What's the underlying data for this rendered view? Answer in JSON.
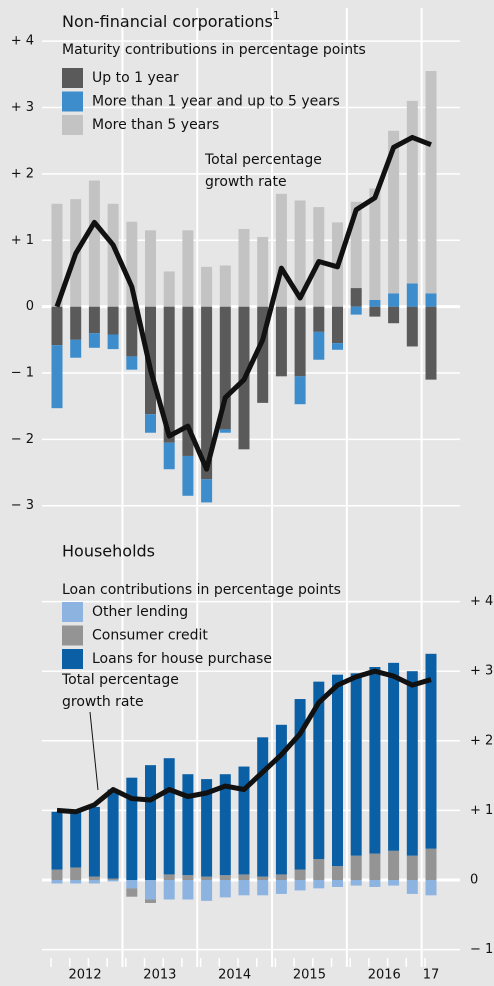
{
  "chart_data": [
    {
      "type": "bar",
      "stacked": true,
      "title": "Non-financial corporations",
      "title_note": "1",
      "subtitle": "Maturity contributions in percentage points",
      "annotation": [
        "Total percentage",
        "growth rate"
      ],
      "y_axis_position": "left",
      "ylim": [
        -3.2,
        4.5
      ],
      "yticks": [
        {
          "value": 4,
          "label": "+ 4"
        },
        {
          "value": 3,
          "label": "+ 3"
        },
        {
          "value": 2,
          "label": "+ 2"
        },
        {
          "value": 1,
          "label": "+ 1"
        },
        0,
        {
          "value": -1,
          "label": "− 1"
        },
        {
          "value": -2,
          "label": "− 2"
        },
        {
          "value": -3,
          "label": "− 3"
        }
      ],
      "grid": true,
      "series": [
        {
          "name": "Up to 1 year",
          "color": "#5a5a5a",
          "values": [
            -0.58,
            -0.5,
            -0.4,
            -0.42,
            -0.75,
            -1.62,
            -2.05,
            -2.25,
            -2.6,
            -1.85,
            -2.15,
            -1.45,
            -1.05,
            -1.05,
            -0.38,
            -0.55,
            0.28,
            -0.15,
            -0.25,
            -0.6,
            -1.1
          ]
        },
        {
          "name": "More than 1 year and up to 5 years",
          "color": "#3d8ccb",
          "values": [
            -0.95,
            -0.27,
            -0.22,
            -0.22,
            -0.2,
            -0.28,
            -0.4,
            -0.6,
            -0.35,
            -0.05,
            0,
            0,
            0,
            -0.42,
            -0.42,
            -0.1,
            -0.12,
            0.1,
            0.2,
            0.35,
            0.2
          ]
        },
        {
          "name": "More than 5 years",
          "color": "#c3c3c3",
          "values": [
            1.55,
            1.62,
            1.9,
            1.55,
            1.28,
            1.15,
            0.53,
            1.15,
            0.6,
            0.62,
            1.17,
            1.05,
            1.7,
            1.6,
            1.5,
            1.27,
            1.3,
            1.68,
            2.45,
            2.75,
            3.35
          ]
        },
        {
          "type": "line",
          "color": "#111111",
          "values": [
            0,
            0.8,
            1.27,
            0.93,
            0.3,
            -0.95,
            -1.95,
            -1.8,
            -2.45,
            -1.37,
            -1.1,
            -0.5,
            0.58,
            0.13,
            0.68,
            0.6,
            1.46,
            1.64,
            2.4,
            2.55,
            2.44
          ]
        }
      ]
    },
    {
      "type": "bar",
      "stacked": true,
      "title": "Households",
      "subtitle": "Loan contributions in percentage points",
      "annotation": [
        "Total percentage",
        "growth rate"
      ],
      "y_axis_position": "right",
      "ylim": [
        -1.25,
        5
      ],
      "yticks": [
        {
          "value": 4,
          "label": "+ 4"
        },
        {
          "value": 3,
          "label": "+ 3"
        },
        {
          "value": 2,
          "label": "+ 2"
        },
        {
          "value": 1,
          "label": "+ 1"
        },
        0,
        {
          "value": -1,
          "label": "− 1"
        }
      ],
      "grid": true,
      "categories": [
        "2012",
        null,
        null,
        null,
        "2013",
        null,
        null,
        null,
        "2014",
        null,
        null,
        null,
        "2015",
        null,
        null,
        null,
        "2016",
        null,
        null,
        null,
        "17"
      ],
      "series": [
        {
          "name": "Other lending",
          "color": "#8db3e0",
          "values": [
            -0.05,
            -0.05,
            -0.05,
            -0.02,
            -0.12,
            -0.28,
            -0.28,
            -0.28,
            -0.3,
            -0.25,
            -0.22,
            -0.22,
            -0.2,
            -0.15,
            -0.12,
            -0.1,
            -0.08,
            -0.1,
            -0.08,
            -0.2,
            -0.22
          ]
        },
        {
          "name": "Consumer credit",
          "color": "#949494",
          "values": [
            0.15,
            0.18,
            0.05,
            0.02,
            -0.12,
            -0.05,
            0.08,
            0.07,
            0.05,
            0.07,
            0.08,
            0.05,
            0.08,
            0.15,
            0.3,
            0.2,
            0.35,
            0.38,
            0.42,
            0.35,
            0.45
          ]
        },
        {
          "name": "Loans for house purchase",
          "color": "#0b5fa5",
          "values": [
            0.83,
            0.8,
            1.0,
            1.28,
            1.47,
            1.65,
            1.67,
            1.45,
            1.4,
            1.45,
            1.55,
            2.0,
            2.15,
            2.45,
            2.55,
            2.75,
            2.62,
            2.68,
            2.7,
            2.65,
            2.8
          ]
        },
        {
          "type": "line",
          "color": "#111111",
          "values": [
            1.0,
            0.98,
            1.08,
            1.3,
            1.17,
            1.15,
            1.3,
            1.2,
            1.25,
            1.35,
            1.3,
            1.55,
            1.8,
            2.1,
            2.55,
            2.8,
            2.92,
            3.0,
            2.93,
            2.8,
            2.88
          ]
        }
      ]
    }
  ]
}
